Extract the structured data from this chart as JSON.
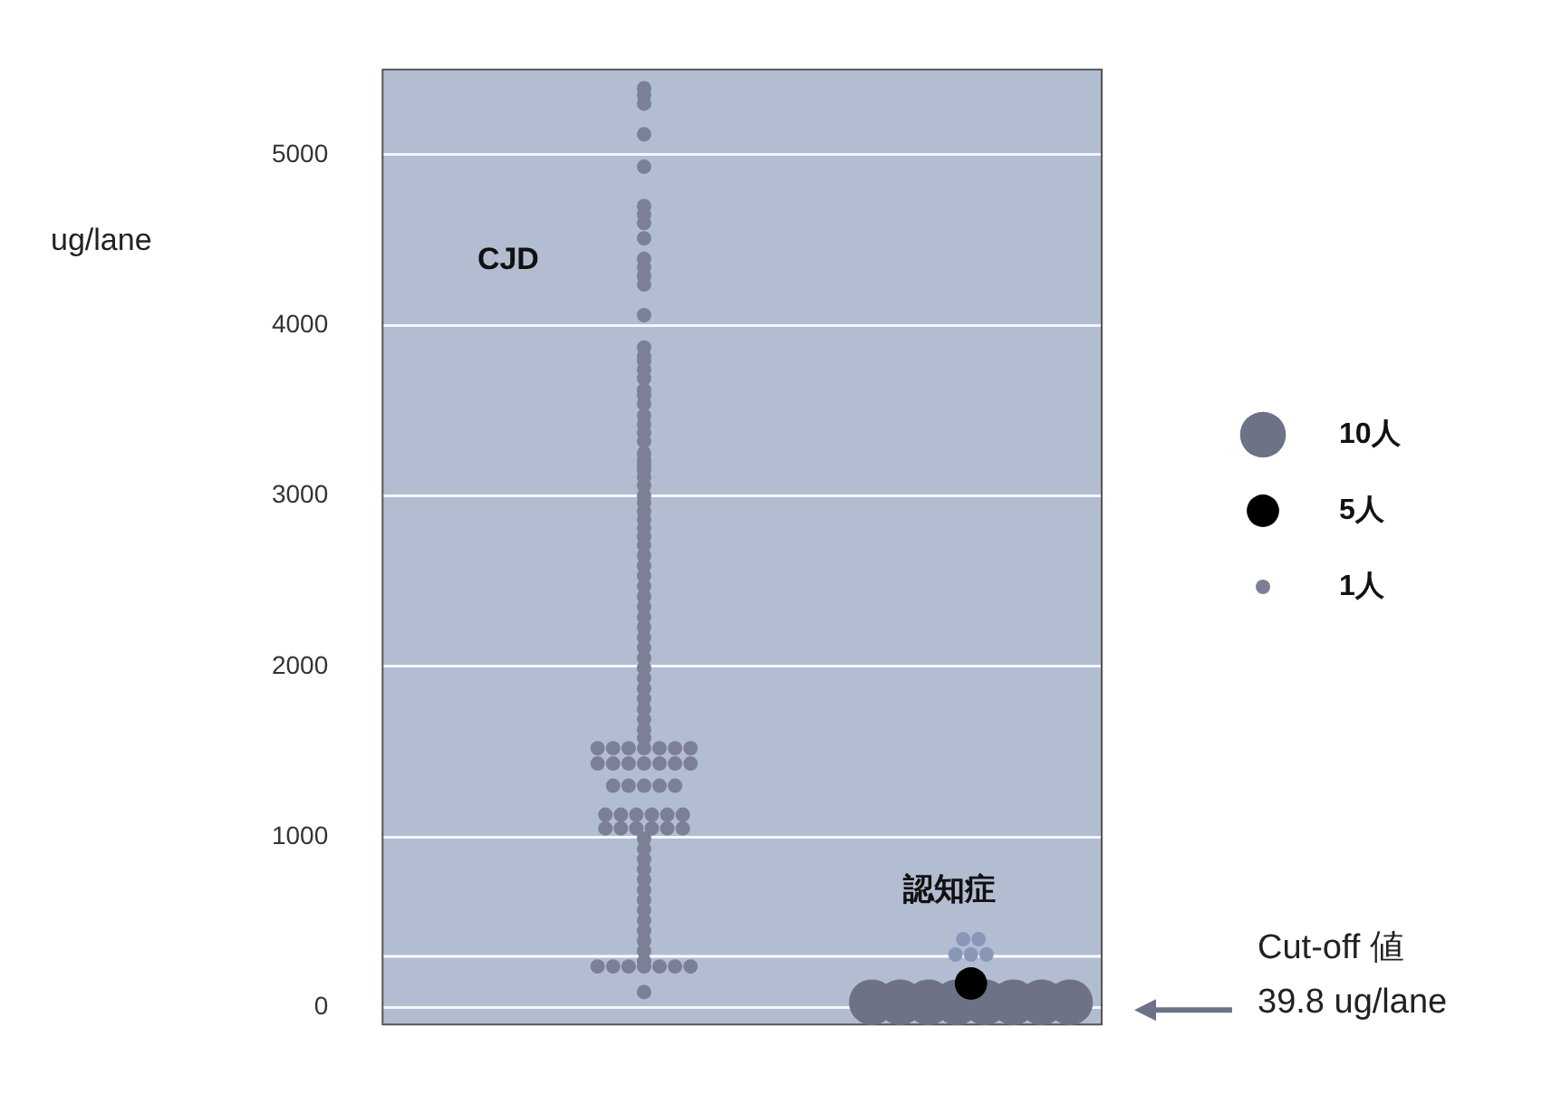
{
  "chart_data": {
    "type": "bubble",
    "ylabel": "ug/lane",
    "categories": [
      "CJD",
      "認知症"
    ],
    "ylim": [
      -100,
      5500
    ],
    "yticks": [
      0,
      1000,
      2000,
      3000,
      4000,
      5000
    ],
    "grid": "y",
    "size_legend": [
      {
        "value": 10,
        "label": "10人"
      },
      {
        "value": 5,
        "label": "5人"
      },
      {
        "value": 1,
        "label": "1人"
      }
    ],
    "ref_lines": [
      {
        "axis": "y",
        "value": 300
      }
    ],
    "annotations": [
      "Cut-off 値\n39.8 ug/lane"
    ],
    "series": [
      {
        "color": "#7b8096",
        "x": [
          "CJD",
          "CJD",
          "CJD",
          "CJD",
          "CJD",
          "CJD",
          "CJD",
          "CJD",
          "CJD",
          "CJD",
          "CJD",
          "CJD",
          "CJD",
          "CJD",
          "CJD",
          "CJD",
          "CJD",
          "CJD",
          "CJD",
          "CJD",
          "CJD",
          "CJD",
          "CJD",
          "CJD",
          "CJD",
          "CJD",
          "CJD",
          "CJD",
          "CJD",
          "CJD",
          "CJD",
          "CJD",
          "CJD",
          "CJD",
          "CJD",
          "CJD",
          "CJD",
          "CJD",
          "CJD",
          "CJD",
          "CJD",
          "CJD",
          "CJD",
          "CJD",
          "CJD",
          "CJD",
          "CJD",
          "CJD",
          "CJD",
          "CJD",
          "CJD",
          "CJD",
          "CJD",
          "CJD",
          "CJD",
          "CJD",
          "CJD",
          "CJD",
          "CJD",
          "CJD",
          "CJD",
          "CJD",
          "CJD",
          "CJD",
          "CJD",
          "CJD",
          "CJD",
          "CJD",
          "CJD",
          "CJD",
          "CJD",
          "CJD",
          "CJD",
          "CJD",
          "CJD",
          "CJD",
          "CJD",
          "CJD",
          "CJD",
          "CJD",
          "CJD",
          "CJD",
          "CJD",
          "CJD",
          "CJD",
          "CJD",
          "CJD",
          "CJD",
          "CJD",
          "CJD",
          "CJD",
          "CJD",
          "CJD",
          "CJD",
          "CJD",
          "CJD",
          "CJD",
          "CJD",
          "CJD",
          "CJD",
          "CJD",
          "CJD",
          "CJD",
          "CJD",
          "CJD",
          "CJD",
          "CJD",
          "CJD",
          "CJD",
          "CJD"
        ],
        "values": [
          5390,
          5350,
          5300,
          5120,
          4930,
          4700,
          4650,
          4600,
          4510,
          4390,
          4340,
          4290,
          4240,
          4060,
          3870,
          3820,
          3790,
          3740,
          3690,
          3620,
          3590,
          3540,
          3470,
          3420,
          3370,
          3320,
          3250,
          3210,
          3180,
          3150,
          3110,
          3060,
          3000,
          2960,
          2910,
          2860,
          2810,
          2760,
          2710,
          2650,
          2590,
          2530,
          2470,
          2410,
          2350,
          2290,
          2230,
          2170,
          2110,
          2050,
          1990,
          1930,
          1870,
          1810,
          1750,
          1690,
          1630,
          1580,
          1520,
          1520,
          1520,
          1520,
          1520,
          1520,
          1520,
          1430,
          1430,
          1430,
          1430,
          1430,
          1430,
          1430,
          1300,
          1300,
          1300,
          1300,
          1300,
          1130,
          1130,
          1130,
          1130,
          1130,
          1130,
          1050,
          1050,
          1050,
          1050,
          1050,
          1050,
          990,
          930,
          870,
          810,
          750,
          690,
          630,
          570,
          510,
          450,
          390,
          330,
          270,
          240,
          240,
          240,
          240,
          240,
          240,
          240,
          90
        ],
        "sizes": [
          1,
          1,
          1,
          1,
          1,
          1,
          1,
          1,
          1,
          1,
          1,
          1,
          1,
          1,
          1,
          1,
          1,
          1,
          1,
          1,
          1,
          1,
          1,
          1,
          1,
          1,
          1,
          1,
          1,
          1,
          1,
          1,
          1,
          1,
          1,
          1,
          1,
          1,
          1,
          1,
          1,
          1,
          1,
          1,
          1,
          1,
          1,
          1,
          1,
          1,
          1,
          1,
          1,
          1,
          1,
          1,
          1,
          1,
          1,
          1,
          1,
          1,
          1,
          1,
          1,
          1,
          1,
          1,
          1,
          1,
          1,
          1,
          1,
          1,
          1,
          1,
          1,
          1,
          1,
          1,
          1,
          1,
          1,
          1,
          1,
          1,
          1,
          1,
          1,
          1,
          1,
          1,
          1,
          1,
          1,
          1,
          1,
          1,
          1,
          1,
          1,
          1,
          1,
          1,
          1,
          1,
          1,
          1,
          1,
          1
        ]
      },
      {
        "x": [
          "認知症",
          "認知症",
          "認知症",
          "認知症",
          "認知症",
          "認知症",
          "認知症",
          "認知症",
          "認知症",
          "認知症",
          "認知症",
          "認知症",
          "認知症",
          "認知症"
        ],
        "values": [
          30,
          30,
          30,
          30,
          30,
          30,
          30,
          30,
          140,
          400,
          400,
          310,
          310,
          310
        ],
        "sizes": [
          10,
          10,
          10,
          10,
          10,
          10,
          10,
          10,
          5,
          1,
          1,
          1,
          1,
          1
        ],
        "colors": [
          "#6d7286",
          "#6d7286",
          "#6d7286",
          "#6d7286",
          "#6d7286",
          "#6d7286",
          "#6d7286",
          "#6d7286",
          "#000000",
          "#8a96b8",
          "#8a96b8",
          "#8a96b8",
          "#8a96b8",
          "#8a96b8"
        ]
      }
    ]
  }
}
